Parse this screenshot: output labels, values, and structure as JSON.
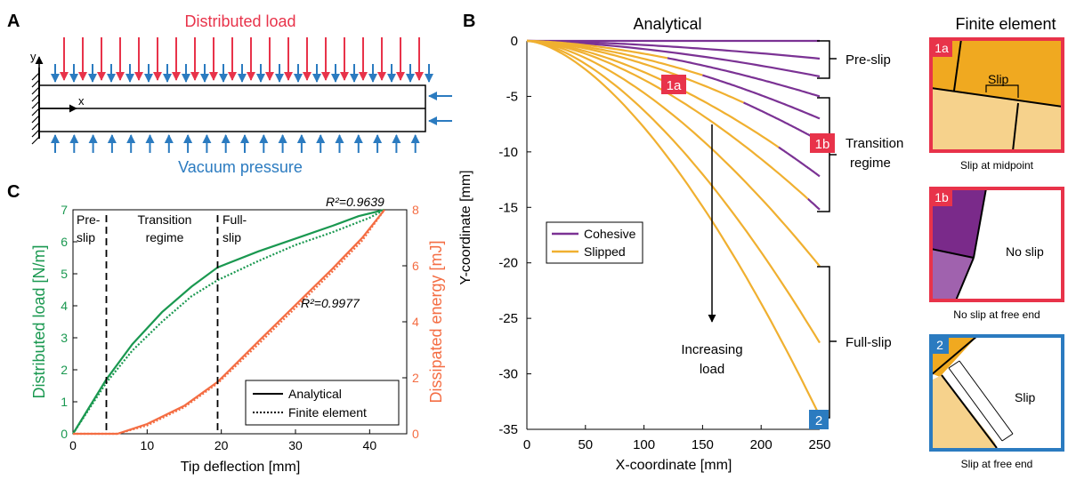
{
  "colors": {
    "green": "#1a9850",
    "orange": "#f46d43",
    "red": "#e8334a",
    "blue": "#2b7bc0",
    "purple": "#7b3294",
    "gold": "#f0b030",
    "fe_light": "#f6d28c",
    "fe_dark": "#f0a920",
    "fe_purple_dark": "#7a2a8a",
    "fe_purple_light": "#a062ae",
    "red_frame": "#e8334a",
    "blue_frame": "#2b7bc0"
  },
  "panel_a": {
    "letter": "A",
    "top_label": "Distributed load",
    "bottom_label": "Vacuum pressure",
    "axis_y": "y",
    "axis_x": "x"
  },
  "panel_b": {
    "letter": "B",
    "title_left": "Analytical",
    "title_right": "Finite element",
    "xlabel": "X-coordinate [mm]",
    "ylabel": "Y-coordinate [mm]",
    "regimes": {
      "pre": "Pre-slip",
      "trans_1": "Transition",
      "trans_2": "regime",
      "full": "Full-slip"
    },
    "arrow_label_1": "Increasing",
    "arrow_label_2": "load",
    "legend": [
      "Cohesive",
      "Slipped"
    ],
    "markers": {
      "m1a": "1a",
      "m1b": "1b",
      "m2": "2"
    },
    "fe_panels": [
      {
        "tag": "1a",
        "caption": "Slip at midpoint",
        "label": "Slip"
      },
      {
        "tag": "1b",
        "caption": "No slip at free end",
        "label": "No slip"
      },
      {
        "tag": "2",
        "caption": "Slip at free end",
        "label": "Slip"
      }
    ]
  },
  "panel_c": {
    "letter": "C",
    "xlabel": "Tip deflection [mm]",
    "ylabel_left": "Distributed load [N/m]",
    "ylabel_right": "Dissipated energy [mJ]",
    "regimes": {
      "pre_1": "Pre-",
      "pre_2": "slip",
      "trans_1": "Transition",
      "trans_2": "regime",
      "full_1": "Full-",
      "full_2": "slip"
    },
    "r2_load": "R²=0.9639",
    "r2_energy": "R²=0.9977",
    "legend": [
      "Analytical",
      "Finite element"
    ]
  },
  "chart_data": [
    {
      "type": "line",
      "id": "C",
      "xlabel": "Tip deflection [mm]",
      "ylabel": "Distributed load [N/m]",
      "y2label": "Dissipated energy [mJ]",
      "xlim": [
        0,
        45
      ],
      "ylim": [
        0,
        7
      ],
      "y2lim": [
        0,
        8
      ],
      "xticks": [
        0,
        10,
        20,
        30,
        40
      ],
      "yticks": [
        0,
        1,
        2,
        3,
        4,
        5,
        6,
        7
      ],
      "y2ticks": [
        0,
        2,
        4,
        6,
        8
      ],
      "regime_lines_x": [
        4.5,
        19.5
      ],
      "series": [
        {
          "name": "Analytical",
          "axis": "left",
          "x": [
            0,
            4.5,
            8,
            12,
            16,
            19.5,
            25,
            30,
            35,
            38.5,
            42
          ],
          "y": [
            0,
            1.7,
            2.8,
            3.8,
            4.6,
            5.2,
            5.7,
            6.1,
            6.5,
            6.8,
            7.0
          ]
        },
        {
          "name": "Finite element",
          "axis": "left",
          "x": [
            0,
            4.5,
            8,
            12,
            16,
            19.5,
            25,
            30,
            35,
            40,
            42
          ],
          "y": [
            0,
            1.6,
            2.6,
            3.5,
            4.3,
            4.8,
            5.4,
            5.9,
            6.3,
            6.75,
            7.0
          ]
        },
        {
          "name": "Analytical",
          "axis": "right",
          "x": [
            0,
            6,
            10,
            15,
            19.5,
            25,
            30,
            35,
            39,
            42
          ],
          "y": [
            0,
            0,
            0.35,
            1.0,
            1.85,
            3.3,
            4.6,
            5.9,
            7.0,
            8.0
          ]
        },
        {
          "name": "Finite element",
          "axis": "right",
          "x": [
            0,
            6,
            10,
            15,
            19.5,
            25,
            30,
            35,
            39,
            42
          ],
          "y": [
            0,
            0,
            0.3,
            0.95,
            1.8,
            3.2,
            4.5,
            5.8,
            6.9,
            8.0
          ]
        }
      ]
    },
    {
      "type": "line",
      "id": "B",
      "xlabel": "X-coordinate [mm]",
      "ylabel": "Y-coordinate [mm]",
      "xlim": [
        0,
        250
      ],
      "ylim": [
        -35,
        0
      ],
      "xticks": [
        0,
        50,
        100,
        150,
        200,
        250
      ],
      "yticks": [
        0,
        -5,
        -10,
        -15,
        -20,
        -25,
        -30,
        -35
      ],
      "tip_deflections": [
        0,
        -1.6,
        -3.2,
        -5.0,
        -7.0,
        -9.0,
        -12.2,
        -15.2,
        -20.3,
        -27.2,
        -33.8
      ],
      "slip_start_x": [
        250,
        250,
        250,
        120,
        150,
        185,
        215,
        240,
        0,
        0,
        0
      ]
    }
  ]
}
